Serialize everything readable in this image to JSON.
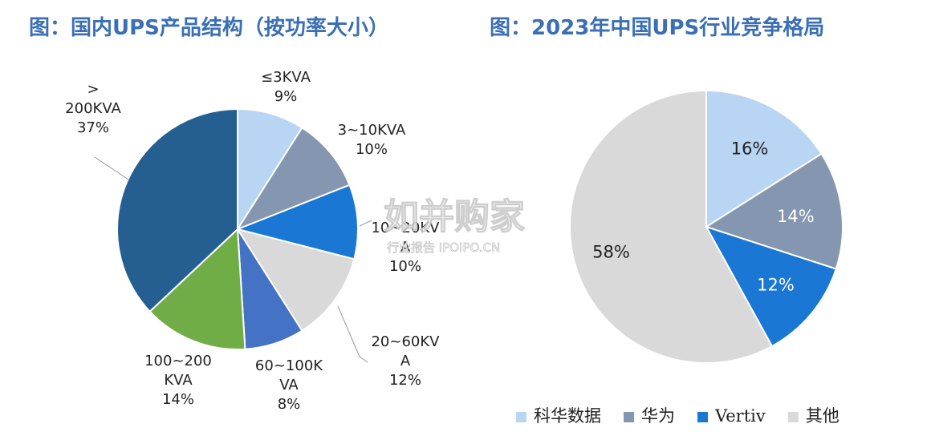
{
  "titles": {
    "left": "图：国内UPS产品结构（按功率大小）",
    "right": "图：2023年中国UPS行业竞争格局"
  },
  "watermark": {
    "main": "如并购家",
    "sub": "行业报告 IPOIPO.CN"
  },
  "chart_data": [
    {
      "type": "pie",
      "title": "图：国内UPS产品结构（按功率大小）",
      "slices": [
        {
          "label_lines": [
            "≤3KVA",
            "9%"
          ],
          "category": "≤3KVA",
          "value": 9,
          "color": "#b8d5f3"
        },
        {
          "label_lines": [
            "3~10KVA",
            "10%"
          ],
          "category": "3~10KVA",
          "value": 10,
          "color": "#8496b0"
        },
        {
          "label_lines": [
            "10~20KV",
            "A",
            "10%"
          ],
          "category": "10~20KVA",
          "value": 10,
          "color": "#1a78d4"
        },
        {
          "label_lines": [
            "20~60KV",
            "A",
            "12%"
          ],
          "category": "20~60KVA",
          "value": 12,
          "color": "#d9d9d9"
        },
        {
          "label_lines": [
            "60~100K",
            "VA",
            "8%"
          ],
          "category": "60~100KVA",
          "value": 8,
          "color": "#4472c4"
        },
        {
          "label_lines": [
            "100~200",
            "KVA",
            "14%"
          ],
          "category": "100~200KVA",
          "value": 14,
          "color": "#70ad47"
        },
        {
          "label_lines": [
            ">",
            "200KVA",
            "37%"
          ],
          "category": ">200KVA",
          "value": 37,
          "color": "#255e91"
        }
      ]
    },
    {
      "type": "pie",
      "title": "图：2023年中国UPS行业竞争格局",
      "slices": [
        {
          "label": "16%",
          "category": "科华数据",
          "value": 16,
          "color": "#b8d5f3",
          "label_color": "#222222"
        },
        {
          "label": "14%",
          "category": "华为",
          "value": 14,
          "color": "#8496b0",
          "label_color": "#ffffff"
        },
        {
          "label": "12%",
          "category": "Vertiv",
          "value": 12,
          "color": "#1a78d4",
          "label_color": "#ffffff"
        },
        {
          "label": "58%",
          "category": "其他",
          "value": 58,
          "color": "#d9d9d9",
          "label_color": "#222222"
        }
      ],
      "legend": [
        "科华数据",
        "华为",
        "Vertiv",
        "其他"
      ],
      "legend_position": "bottom"
    }
  ]
}
